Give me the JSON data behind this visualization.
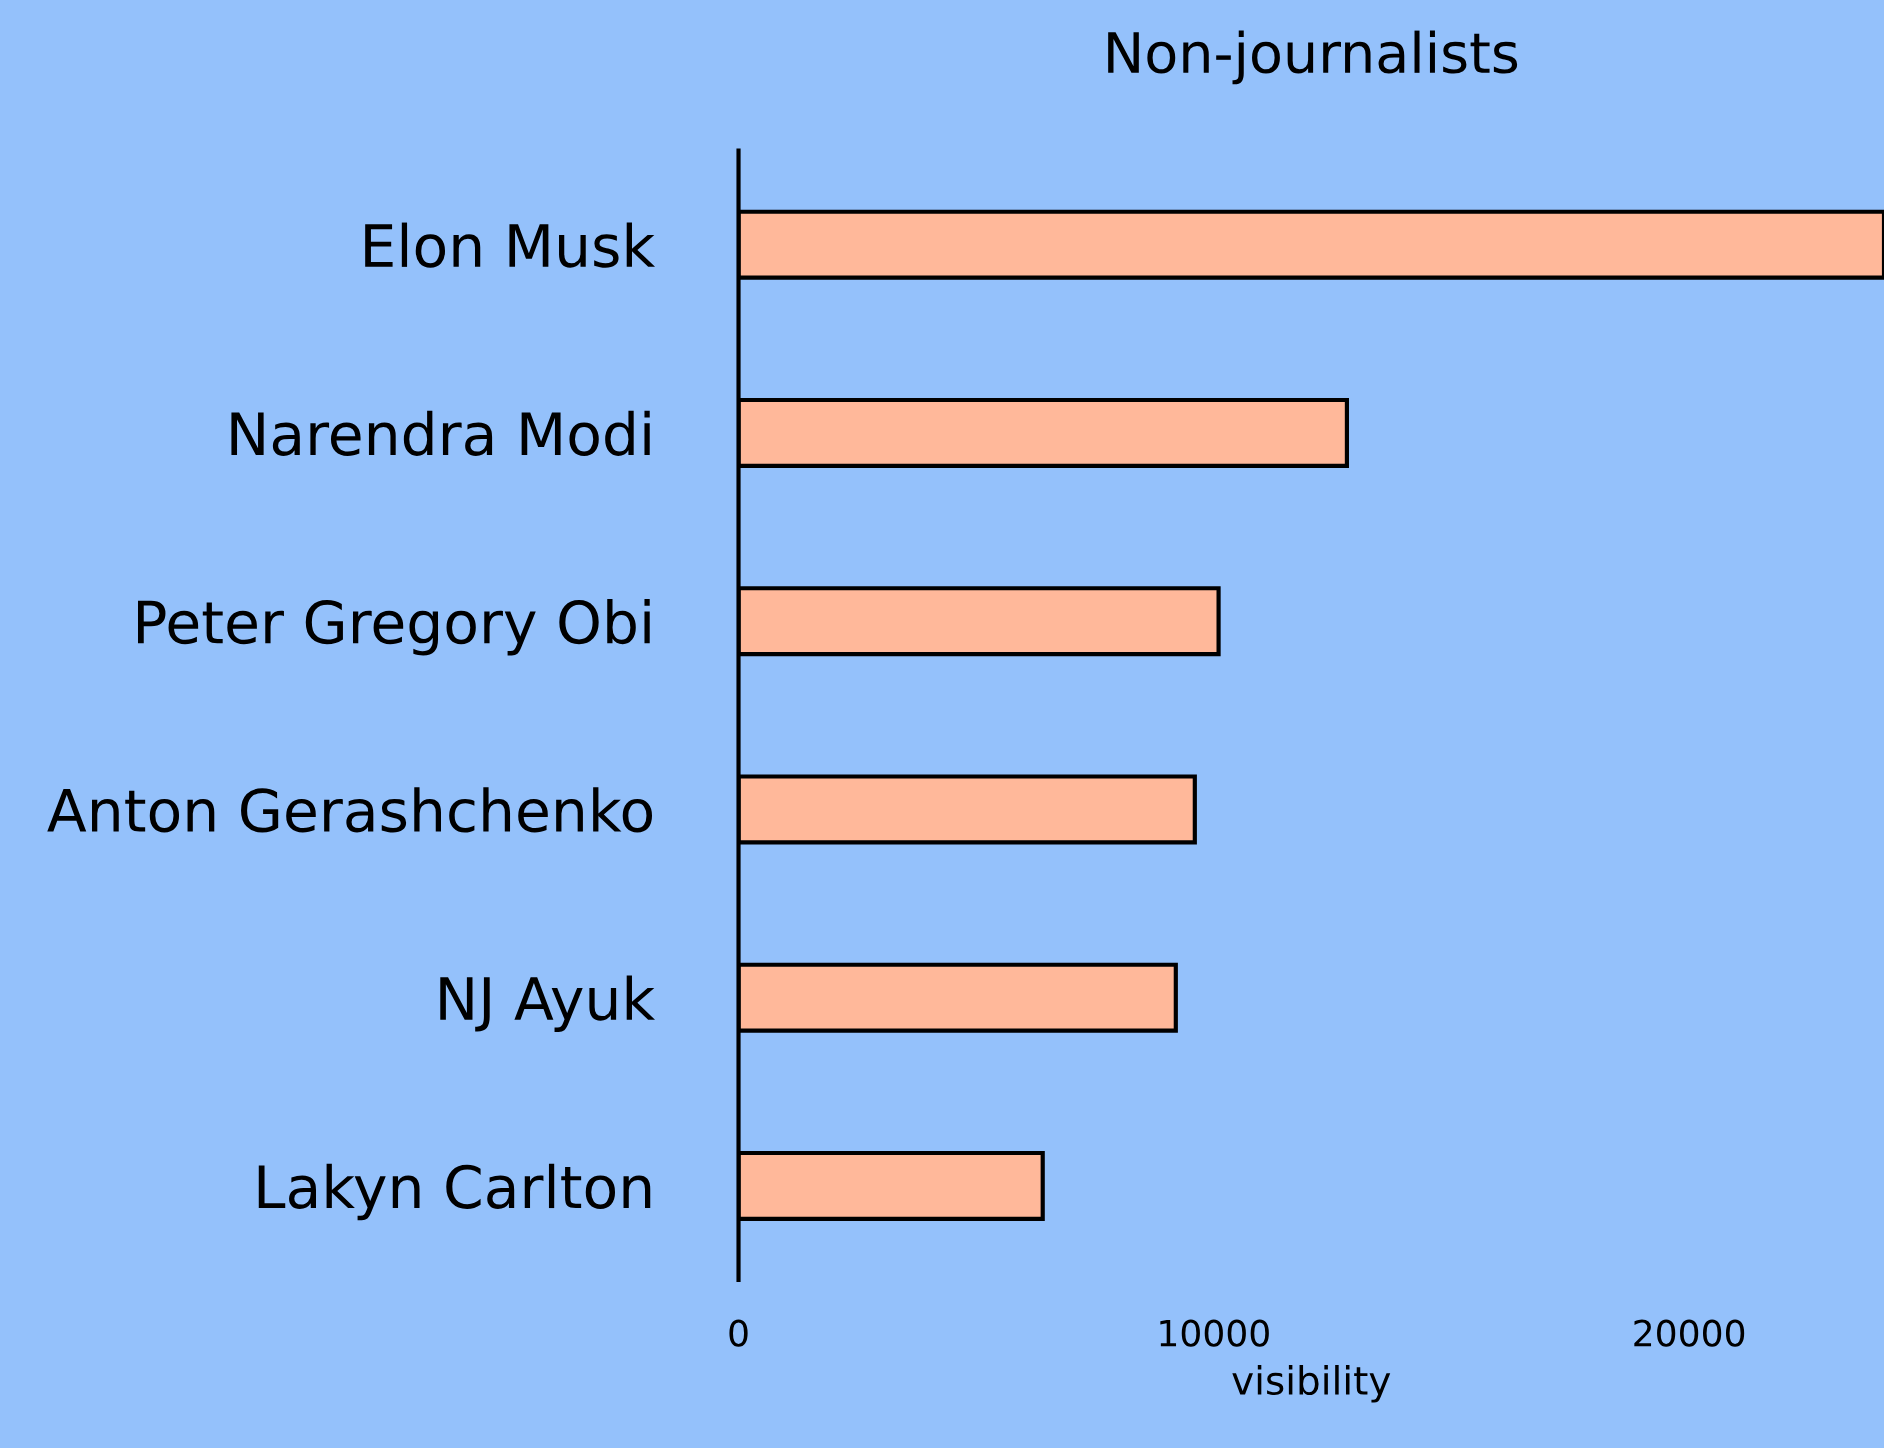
{
  "chart_data": {
    "type": "bar",
    "orientation": "horizontal",
    "title": "Non-journalists",
    "xlabel": "visibility",
    "categories": [
      "Elon Musk",
      "Narendra Modi",
      "Peter Gregory Obi",
      "Anton Gerashchenko",
      "NJ Ayuk",
      "Lakyn Carlton"
    ],
    "values": [
      24100,
      12800,
      10100,
      9600,
      9200,
      6400
    ],
    "color": "#ffb89a",
    "xlim": [
      0,
      24100
    ],
    "xticks": [
      0,
      10000,
      20000
    ],
    "grid": false,
    "legend": false
  }
}
